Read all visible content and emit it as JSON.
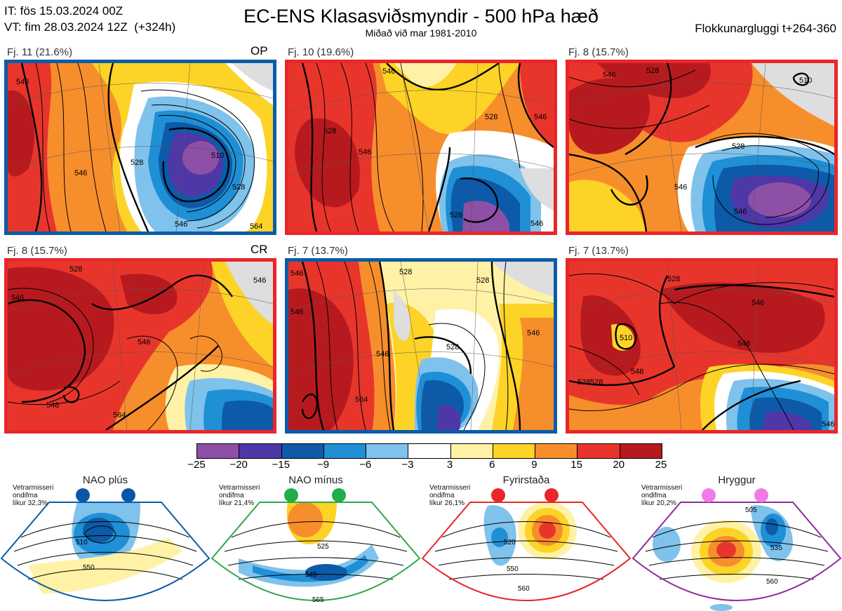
{
  "header": {
    "it_line": "IT: fös 15.03.2024 00Z",
    "vt_line": "VT: fim 28.03.2024 12Z  (+324h)",
    "title": "EC-ENS Klasasviðsmyndir - 500 hPa hæð",
    "subtitle": "Miðað við mar 1981-2010",
    "window": "Flokkunargluggi t+264-360"
  },
  "colors": {
    "blue_frame": "#0b5ca8",
    "red_frame": "#e8262b",
    "green_frame": "#2ea84a",
    "purple_frame": "#8e2c9a",
    "nao_plus_dot": "#0a57a8",
    "nao_minus_dot": "#1fae48",
    "blocking_dot": "#e8262b",
    "ridge_dot": "#f07be6"
  },
  "panels": [
    {
      "label": "Fj. 11 (21.6%)",
      "tag": "OP",
      "frame": "blue",
      "contours": [
        "546",
        "546",
        "528",
        "510",
        "528",
        "546",
        "564"
      ]
    },
    {
      "label": "Fj. 10 (19.6%)",
      "tag": "",
      "frame": "red",
      "contours": [
        "546",
        "528",
        "546",
        "528",
        "546",
        "528",
        "546"
      ]
    },
    {
      "label": "Fj. 8 (15.7%)",
      "tag": "",
      "frame": "red",
      "contours": [
        "546",
        "528",
        "510",
        "528",
        "546",
        "546"
      ]
    },
    {
      "label": "Fj. 8 (15.7%)",
      "tag": "CR",
      "frame": "red",
      "contours": [
        "528",
        "546",
        "546",
        "546",
        "564",
        "546"
      ]
    },
    {
      "label": "Fj. 7 (13.7%)",
      "tag": "",
      "frame": "blue",
      "contours": [
        "546",
        "528",
        "546",
        "528",
        "546",
        "564",
        "528",
        "546"
      ]
    },
    {
      "label": "Fj. 7 (13.7%)",
      "tag": "",
      "frame": "red",
      "contours": [
        "528",
        "546",
        "528",
        "546",
        "510",
        "546",
        "528",
        "546"
      ]
    }
  ],
  "chart_data": {
    "type": "heatmap",
    "title": "EC-ENS Klasasviðsmyndir - 500 hPa hæð",
    "colorbar": {
      "ticks": [
        "−25",
        "−20",
        "−15",
        "−9",
        "−6",
        "−3",
        "3",
        "6",
        "9",
        "15",
        "20",
        "25"
      ],
      "colors": [
        "#8e4fa6",
        "#4e37a6",
        "#0d5aa8",
        "#1f8fd6",
        "#7fc2ec",
        "#ffffff",
        "#fff2a6",
        "#fdd327",
        "#f78e2c",
        "#e8352c",
        "#b71a1e"
      ]
    },
    "regimes": [
      {
        "name": "NAO plús",
        "line1": "Vetrarmisseri",
        "line2": "ondifma",
        "line3": "líkur 32,3%",
        "contours": [
          "510",
          "550"
        ]
      },
      {
        "name": "NAO mínus",
        "line1": "Vetrarmisseri",
        "line2": "ondifma",
        "line3": "líkur 21,4%",
        "contours": [
          "525",
          "545",
          "565"
        ]
      },
      {
        "name": "Fyrirstaða",
        "line1": "Vetrarmisseri",
        "line2": "ondifma",
        "line3": "líkur 26,1%",
        "contours": [
          "520",
          "550",
          "560"
        ]
      },
      {
        "name": "Hryggur",
        "line1": "Vetrarmisseri",
        "line2": "ondifma",
        "line3": "líkur 20,2%",
        "contours": [
          "505",
          "535",
          "560"
        ]
      }
    ]
  }
}
